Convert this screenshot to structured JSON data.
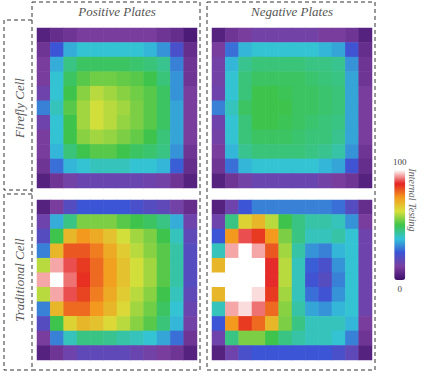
{
  "chart_data": {
    "type": "heatmap",
    "tick_labels": false,
    "columns": [
      "Positive Plates",
      "Negative Plates"
    ],
    "rows": [
      "Firefly Cell",
      "Traditional Cell"
    ],
    "colorbar": {
      "label": "Internal Testing",
      "range": [
        0,
        100
      ],
      "ticks": [
        0,
        100
      ]
    },
    "panels": [
      {
        "column": "Positive Plates",
        "row": "Firefly Cell",
        "cells": [
          [
            5,
            8,
            10,
            12,
            12,
            12,
            12,
            12,
            12,
            10,
            8,
            3
          ],
          [
            10,
            25,
            35,
            38,
            38,
            38,
            38,
            38,
            36,
            32,
            22,
            8
          ],
          [
            12,
            35,
            45,
            48,
            48,
            48,
            48,
            47,
            46,
            44,
            30,
            10
          ],
          [
            12,
            38,
            48,
            52,
            54,
            54,
            53,
            52,
            50,
            46,
            32,
            10
          ],
          [
            15,
            38,
            50,
            56,
            60,
            58,
            56,
            54,
            52,
            48,
            32,
            12
          ],
          [
            30,
            40,
            52,
            58,
            62,
            60,
            58,
            55,
            52,
            48,
            34,
            12
          ],
          [
            15,
            38,
            50,
            58,
            62,
            60,
            57,
            55,
            52,
            48,
            34,
            12
          ],
          [
            12,
            38,
            50,
            56,
            58,
            57,
            55,
            53,
            50,
            46,
            34,
            12
          ],
          [
            12,
            36,
            46,
            50,
            52,
            52,
            50,
            48,
            47,
            45,
            32,
            10
          ],
          [
            10,
            28,
            36,
            38,
            40,
            40,
            40,
            38,
            38,
            36,
            26,
            8
          ],
          [
            5,
            10,
            14,
            16,
            16,
            16,
            16,
            16,
            15,
            14,
            10,
            5
          ]
        ]
      },
      {
        "column": "Negative Plates",
        "row": "Firefly Cell",
        "cells": [
          [
            5,
            10,
            12,
            14,
            14,
            14,
            14,
            14,
            12,
            12,
            10,
            5
          ],
          [
            12,
            28,
            36,
            38,
            38,
            38,
            38,
            38,
            36,
            34,
            24,
            8
          ],
          [
            14,
            36,
            44,
            46,
            46,
            46,
            46,
            45,
            45,
            44,
            32,
            10
          ],
          [
            14,
            38,
            46,
            48,
            48,
            48,
            48,
            47,
            46,
            45,
            34,
            10
          ],
          [
            15,
            38,
            46,
            50,
            50,
            49,
            48,
            48,
            47,
            46,
            34,
            12
          ],
          [
            30,
            40,
            48,
            50,
            50,
            50,
            48,
            48,
            47,
            46,
            34,
            12
          ],
          [
            15,
            38,
            46,
            50,
            50,
            49,
            48,
            47,
            46,
            45,
            34,
            12
          ],
          [
            14,
            38,
            46,
            48,
            48,
            48,
            47,
            46,
            46,
            44,
            34,
            12
          ],
          [
            12,
            36,
            44,
            46,
            46,
            46,
            46,
            45,
            44,
            42,
            32,
            10
          ],
          [
            10,
            28,
            36,
            38,
            38,
            38,
            38,
            38,
            36,
            34,
            24,
            8
          ],
          [
            5,
            10,
            14,
            16,
            16,
            16,
            16,
            16,
            14,
            12,
            10,
            5
          ]
        ]
      },
      {
        "column": "Positive Plates",
        "row": "Traditional Cell",
        "cells": [
          [
            5,
            12,
            20,
            25,
            25,
            25,
            25,
            22,
            20,
            18,
            14,
            8
          ],
          [
            15,
            35,
            45,
            55,
            55,
            55,
            52,
            50,
            48,
            45,
            35,
            15
          ],
          [
            20,
            50,
            70,
            75,
            72,
            68,
            62,
            58,
            55,
            50,
            40,
            18
          ],
          [
            30,
            70,
            82,
            82,
            78,
            72,
            66,
            60,
            56,
            52,
            42,
            20
          ],
          [
            60,
            95,
            90,
            85,
            80,
            74,
            68,
            62,
            58,
            52,
            42,
            20
          ],
          [
            95,
            100,
            92,
            86,
            80,
            74,
            68,
            62,
            58,
            52,
            42,
            20
          ],
          [
            60,
            95,
            90,
            84,
            78,
            72,
            66,
            60,
            56,
            50,
            40,
            18
          ],
          [
            30,
            70,
            80,
            80,
            75,
            70,
            64,
            58,
            54,
            48,
            38,
            16
          ],
          [
            20,
            50,
            65,
            70,
            68,
            64,
            60,
            56,
            52,
            46,
            36,
            14
          ],
          [
            12,
            30,
            40,
            45,
            45,
            44,
            42,
            40,
            38,
            34,
            28,
            10
          ],
          [
            5,
            10,
            15,
            18,
            18,
            18,
            18,
            16,
            14,
            12,
            10,
            5
          ]
        ]
      },
      {
        "column": "Negative Plates",
        "row": "Traditional Cell",
        "cells": [
          [
            5,
            15,
            25,
            30,
            30,
            30,
            30,
            30,
            30,
            28,
            20,
            8
          ],
          [
            15,
            45,
            65,
            70,
            60,
            50,
            45,
            42,
            42,
            40,
            32,
            12
          ],
          [
            25,
            75,
            90,
            85,
            75,
            55,
            45,
            40,
            40,
            42,
            38,
            15
          ],
          [
            40,
            95,
            100,
            95,
            82,
            58,
            42,
            32,
            30,
            36,
            38,
            15
          ],
          [
            70,
            100,
            100,
            100,
            88,
            60,
            40,
            26,
            22,
            32,
            38,
            15
          ],
          [
            100,
            100,
            100,
            100,
            88,
            60,
            40,
            24,
            20,
            30,
            38,
            15
          ],
          [
            70,
            100,
            100,
            98,
            85,
            58,
            40,
            28,
            24,
            32,
            38,
            15
          ],
          [
            40,
            95,
            98,
            92,
            80,
            56,
            42,
            34,
            32,
            36,
            38,
            15
          ],
          [
            25,
            75,
            85,
            80,
            70,
            55,
            45,
            40,
            40,
            40,
            36,
            12
          ],
          [
            15,
            45,
            55,
            55,
            50,
            45,
            42,
            40,
            40,
            38,
            30,
            10
          ],
          [
            5,
            15,
            22,
            25,
            25,
            25,
            25,
            25,
            25,
            22,
            18,
            5
          ]
        ]
      }
    ]
  }
}
